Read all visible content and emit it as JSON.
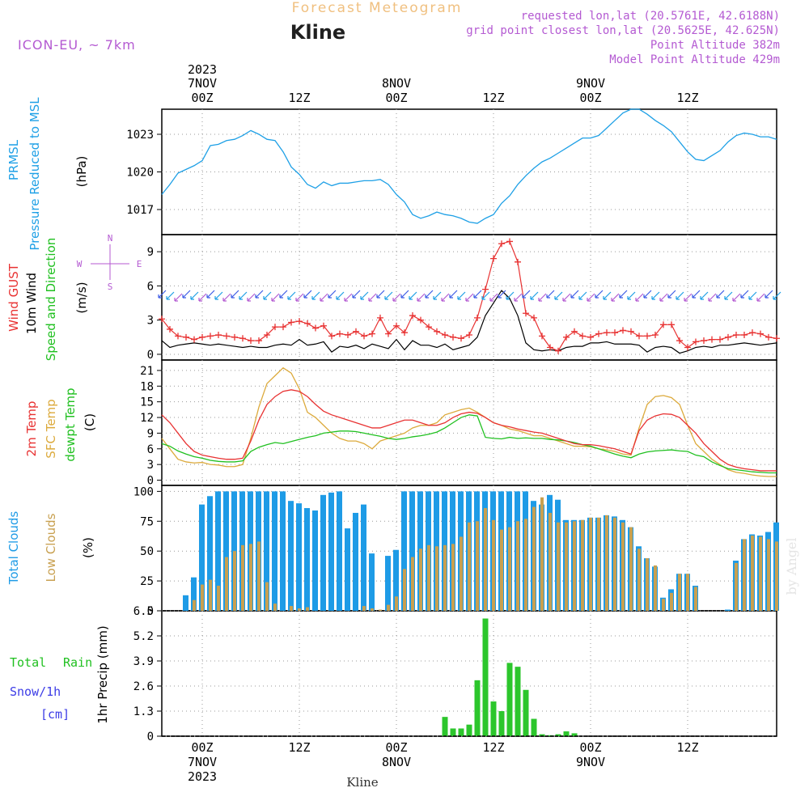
{
  "header": {
    "title": "Forecast Meteogram",
    "location": "Kline",
    "model": "ICON-EU, ~ 7km",
    "requested": "requested lon,lat (20.5761E, 42.6188N)",
    "grid_point": "grid point closest lon,lat (20.5625E, 42.625N)",
    "point_altitude": "Point Altitude 382m",
    "model_altitude": "Model Point Altitude 429m",
    "credit": "by Angel",
    "footer_location": "Kline"
  },
  "colors": {
    "pressure": "#1ea0e6",
    "gust": "#e83232",
    "wind": "#000000",
    "temp2m": "#e83232",
    "sfc": "#dcaa3c",
    "dewpt": "#20c020",
    "total_clouds": "#1e9be6",
    "low_clouds": "#c8a050",
    "rain": "#2cc62c",
    "snow": "#3c3ce6",
    "purple": "#b45ad2",
    "cyan": "#1ea0e6"
  },
  "time_axis": {
    "top": [
      {
        "line1": "2023",
        "line2": "7NOV",
        "line3": "00Z",
        "hour": 0
      },
      {
        "line1": "",
        "line2": "",
        "line3": "12Z",
        "hour": 12
      },
      {
        "line1": "",
        "line2": "8NOV",
        "line3": "00Z",
        "hour": 24
      },
      {
        "line1": "",
        "line2": "",
        "line3": "12Z",
        "hour": 36
      },
      {
        "line1": "",
        "line2": "9NOV",
        "line3": "00Z",
        "hour": 48
      },
      {
        "line1": "",
        "line2": "",
        "line3": "12Z",
        "hour": 60
      }
    ],
    "bottom": [
      {
        "line1": "00Z",
        "line2": "7NOV",
        "line3": "2023",
        "hour": 0
      },
      {
        "line1": "12Z",
        "line2": "",
        "line3": "",
        "hour": 12
      },
      {
        "line1": "00Z",
        "line2": "8NOV",
        "line3": "",
        "hour": 24
      },
      {
        "line1": "12Z",
        "line2": "",
        "line3": "",
        "hour": 36
      },
      {
        "line1": "00Z",
        "line2": "9NOV",
        "line3": "",
        "hour": 48
      },
      {
        "line1": "12Z",
        "line2": "",
        "line3": "",
        "hour": 60
      }
    ]
  },
  "chart_data": [
    {
      "type": "line",
      "id": "pressure",
      "labels": [
        "PRMSL",
        "Pressure Reduced to MSL",
        "(hPa)"
      ],
      "x_range": [
        -5,
        71
      ],
      "ylim": [
        1015,
        1025
      ],
      "yticks": [
        1017,
        1020,
        1023
      ],
      "x": [
        -5,
        -4,
        -3,
        -2,
        -1,
        0,
        1,
        2,
        3,
        4,
        5,
        6,
        7,
        8,
        9,
        10,
        11,
        12,
        13,
        14,
        15,
        16,
        17,
        18,
        19,
        20,
        21,
        22,
        23,
        24,
        25,
        26,
        27,
        28,
        29,
        30,
        31,
        32,
        33,
        34,
        35,
        36,
        37,
        38,
        39,
        40,
        41,
        42,
        43,
        44,
        45,
        46,
        47,
        48,
        49,
        50,
        51,
        52,
        53,
        54,
        55,
        56,
        57,
        58,
        59,
        60,
        61,
        62,
        63,
        64,
        65,
        66,
        67,
        68,
        69,
        70,
        71
      ],
      "values": [
        1018.2,
        1019.0,
        1019.9,
        1020.2,
        1020.5,
        1020.9,
        1022.1,
        1022.2,
        1022.5,
        1022.6,
        1022.9,
        1023.3,
        1023.0,
        1022.6,
        1022.5,
        1021.6,
        1020.4,
        1019.8,
        1019.0,
        1018.7,
        1019.2,
        1018.9,
        1019.1,
        1019.1,
        1019.2,
        1019.3,
        1019.3,
        1019.4,
        1019.0,
        1018.2,
        1017.6,
        1016.6,
        1016.3,
        1016.5,
        1016.8,
        1016.6,
        1016.5,
        1016.3,
        1016.0,
        1015.9,
        1016.3,
        1016.6,
        1017.5,
        1018.1,
        1019.0,
        1019.7,
        1020.3,
        1020.8,
        1021.1,
        1021.5,
        1021.9,
        1022.3,
        1022.7,
        1022.7,
        1022.9,
        1023.5,
        1024.1,
        1024.7,
        1025.0,
        1025.0,
        1024.6,
        1024.1,
        1023.7,
        1023.2,
        1022.4,
        1021.6,
        1021.0,
        1020.9,
        1021.3,
        1021.7,
        1022.4,
        1022.9,
        1023.1,
        1023.0,
        1022.8,
        1022.8,
        1022.6
      ]
    },
    {
      "type": "line",
      "id": "wind",
      "labels": [
        "Wind GUST",
        "10m Wind",
        "Speed and Direction",
        "(m/s)"
      ],
      "compass": {
        "n": "N",
        "e": "E",
        "s": "S",
        "w": "W"
      },
      "x_range": [
        -5,
        71
      ],
      "ylim": [
        -0.5,
        10.5
      ],
      "yticks": [
        0,
        3,
        6,
        9
      ],
      "x": [
        -5,
        -4,
        -3,
        -2,
        -1,
        0,
        1,
        2,
        3,
        4,
        5,
        6,
        7,
        8,
        9,
        10,
        11,
        12,
        13,
        14,
        15,
        16,
        17,
        18,
        19,
        20,
        21,
        22,
        23,
        24,
        25,
        26,
        27,
        28,
        29,
        30,
        31,
        32,
        33,
        34,
        35,
        36,
        37,
        38,
        39,
        40,
        41,
        42,
        43,
        44,
        45,
        46,
        47,
        48,
        49,
        50,
        51,
        52,
        53,
        54,
        55,
        56,
        57,
        58,
        59,
        60,
        61,
        62,
        63,
        64,
        65,
        66,
        67,
        68,
        69,
        70,
        71
      ],
      "gust": [
        3.1,
        2.2,
        1.6,
        1.5,
        1.3,
        1.5,
        1.6,
        1.7,
        1.6,
        1.5,
        1.4,
        1.2,
        1.2,
        1.7,
        2.4,
        2.4,
        2.8,
        2.9,
        2.7,
        2.3,
        2.5,
        1.6,
        1.8,
        1.7,
        2.0,
        1.6,
        1.8,
        3.2,
        1.8,
        2.5,
        1.9,
        3.4,
        3.0,
        2.4,
        2.0,
        1.7,
        1.5,
        1.4,
        1.7,
        3.2,
        5.7,
        8.4,
        9.7,
        9.9,
        8.1,
        3.6,
        3.2,
        1.6,
        0.6,
        0.3,
        1.5,
        2.0,
        1.6,
        1.5,
        1.8,
        1.9,
        1.9,
        2.1,
        2.0,
        1.6,
        1.6,
        1.7,
        2.6,
        2.6,
        1.2,
        0.6,
        1.1,
        1.2,
        1.3,
        1.3,
        1.5,
        1.7,
        1.7,
        1.9,
        1.8,
        1.5,
        1.4
      ],
      "speed": [
        1.2,
        0.6,
        0.8,
        0.9,
        1.0,
        0.9,
        0.8,
        0.9,
        0.8,
        0.7,
        0.6,
        0.7,
        0.6,
        0.6,
        0.8,
        0.9,
        0.8,
        1.3,
        0.8,
        0.9,
        1.1,
        0.2,
        0.7,
        0.6,
        0.8,
        0.5,
        0.9,
        0.7,
        0.5,
        1.3,
        0.4,
        1.2,
        0.8,
        0.8,
        0.6,
        0.9,
        0.4,
        0.6,
        0.8,
        1.5,
        3.4,
        4.5,
        5.6,
        4.9,
        3.4,
        1.0,
        0.4,
        0.3,
        0.4,
        0.3,
        0.6,
        0.7,
        0.7,
        1.0,
        1.0,
        1.1,
        0.9,
        0.9,
        0.9,
        0.8,
        0.2,
        0.6,
        0.7,
        0.6,
        0.1,
        0.3,
        0.6,
        0.7,
        0.6,
        0.8,
        0.8,
        0.9,
        1.0,
        0.9,
        0.8,
        0.9,
        1.0
      ]
    },
    {
      "type": "line",
      "id": "temperature",
      "labels": [
        "2m Temp",
        "SFC Temp",
        "dewpt Temp",
        "(C)"
      ],
      "x_range": [
        -5,
        71
      ],
      "ylim": [
        -1,
        23
      ],
      "yticks": [
        0,
        3,
        6,
        9,
        12,
        15,
        18,
        21
      ],
      "x": [
        -5,
        -4,
        -3,
        -2,
        -1,
        0,
        1,
        2,
        3,
        4,
        5,
        6,
        7,
        8,
        9,
        10,
        11,
        12,
        13,
        14,
        15,
        16,
        17,
        18,
        19,
        20,
        21,
        22,
        23,
        24,
        25,
        26,
        27,
        28,
        29,
        30,
        31,
        32,
        33,
        34,
        35,
        36,
        37,
        38,
        39,
        40,
        41,
        42,
        43,
        44,
        45,
        46,
        47,
        48,
        49,
        50,
        51,
        52,
        53,
        54,
        55,
        56,
        57,
        58,
        59,
        60,
        61,
        62,
        63,
        64,
        65,
        66,
        67,
        68,
        69,
        70,
        71
      ],
      "temp2m": [
        12.5,
        11.0,
        9.0,
        7.0,
        5.5,
        4.8,
        4.5,
        4.2,
        4.0,
        4.0,
        4.2,
        7.5,
        11.5,
        14.5,
        16.0,
        17.0,
        17.3,
        17.0,
        16.0,
        14.5,
        13.2,
        12.5,
        12.0,
        11.5,
        11.0,
        10.5,
        10.0,
        10.0,
        10.5,
        11.0,
        11.5,
        11.5,
        11.0,
        10.5,
        10.5,
        11.0,
        12.0,
        12.7,
        13.0,
        12.8,
        12.0,
        11.0,
        10.5,
        10.2,
        9.8,
        9.5,
        9.2,
        9.0,
        8.5,
        8.0,
        7.5,
        7.0,
        6.8,
        6.8,
        6.6,
        6.3,
        6.0,
        5.5,
        5.0,
        9.5,
        11.5,
        12.3,
        12.7,
        12.6,
        12.0,
        10.5,
        9.0,
        7.0,
        5.5,
        4.0,
        3.0,
        2.5,
        2.2,
        2.0,
        1.8,
        1.8,
        1.8
      ],
      "sfc": [
        8.0,
        6.0,
        4.0,
        3.5,
        3.3,
        3.4,
        3.0,
        2.9,
        2.6,
        2.6,
        3.0,
        8.0,
        14.0,
        18.5,
        20.0,
        21.5,
        20.5,
        17.5,
        13.0,
        12.0,
        10.5,
        9.0,
        8.0,
        7.5,
        7.5,
        7.0,
        6.0,
        7.5,
        8.0,
        8.5,
        9.0,
        10.0,
        10.5,
        10.5,
        11.0,
        12.5,
        13.0,
        13.5,
        13.8,
        13.0,
        12.0,
        11.0,
        10.5,
        9.8,
        9.5,
        9.0,
        8.5,
        8.5,
        8.0,
        7.5,
        7.0,
        6.5,
        6.5,
        6.4,
        6.0,
        5.8,
        5.5,
        5.0,
        4.8,
        10.0,
        14.5,
        16.0,
        16.2,
        15.8,
        14.5,
        10.5,
        7.0,
        5.5,
        4.0,
        3.0,
        2.0,
        1.5,
        1.3,
        1.0,
        0.8,
        0.7,
        0.7
      ],
      "dewpt": [
        7.0,
        6.5,
        5.6,
        5.0,
        4.5,
        4.2,
        3.8,
        3.6,
        3.5,
        3.5,
        3.7,
        5.5,
        6.3,
        6.8,
        7.2,
        7.0,
        7.4,
        7.8,
        8.2,
        8.5,
        9.0,
        9.2,
        9.4,
        9.4,
        9.3,
        9.0,
        8.7,
        8.4,
        8.0,
        7.8,
        8.0,
        8.3,
        8.5,
        8.8,
        9.2,
        10.0,
        11.0,
        12.0,
        12.5,
        12.3,
        8.2,
        8.0,
        7.9,
        8.2,
        8.0,
        8.1,
        8.0,
        8.0,
        7.8,
        7.7,
        7.5,
        7.2,
        6.8,
        6.5,
        6.0,
        5.5,
        5.0,
        4.6,
        4.3,
        5.0,
        5.4,
        5.6,
        5.7,
        5.8,
        5.6,
        5.5,
        4.8,
        4.5,
        3.5,
        2.8,
        2.2,
        2.0,
        1.8,
        1.6,
        1.5,
        1.4,
        1.4
      ]
    },
    {
      "type": "bar",
      "id": "clouds",
      "labels": [
        "Total Clouds",
        "Low Clouds",
        "(%)"
      ],
      "x_range": [
        -5,
        71
      ],
      "ylim": [
        0,
        105
      ],
      "yticks": [
        0,
        25,
        50,
        75,
        100
      ],
      "x": [
        -5,
        -4,
        -3,
        -2,
        -1,
        0,
        1,
        2,
        3,
        4,
        5,
        6,
        7,
        8,
        9,
        10,
        11,
        12,
        13,
        14,
        15,
        16,
        17,
        18,
        19,
        20,
        21,
        22,
        23,
        24,
        25,
        26,
        27,
        28,
        29,
        30,
        31,
        32,
        33,
        34,
        35,
        36,
        37,
        38,
        39,
        40,
        41,
        42,
        43,
        44,
        45,
        46,
        47,
        48,
        49,
        50,
        51,
        52,
        53,
        54,
        55,
        56,
        57,
        58,
        59,
        60,
        61,
        62,
        63,
        64,
        65,
        66,
        67,
        68,
        69,
        70,
        71
      ],
      "total": [
        0,
        0,
        0,
        13,
        28,
        89,
        96,
        100,
        100,
        100,
        100,
        100,
        100,
        100,
        100,
        100,
        92,
        90,
        86,
        84,
        97,
        99,
        100,
        69,
        82,
        89,
        48,
        0,
        46,
        51,
        100,
        100,
        100,
        100,
        100,
        100,
        100,
        100,
        100,
        100,
        100,
        100,
        100,
        100,
        100,
        100,
        92,
        89,
        97,
        93,
        76,
        76,
        76,
        78,
        78,
        80,
        79,
        76,
        70,
        54,
        44,
        37,
        11,
        18,
        31,
        31,
        21,
        0,
        0,
        0,
        1,
        42,
        60,
        64,
        63,
        66,
        74
      ],
      "low": [
        0,
        0,
        0,
        0,
        9,
        22,
        26,
        21,
        45,
        50,
        55,
        56,
        58,
        24,
        6,
        0,
        4,
        2,
        3,
        0,
        0,
        0,
        0,
        0,
        0,
        4,
        2,
        1,
        5,
        12,
        35,
        45,
        52,
        55,
        54,
        55,
        56,
        62,
        74,
        75,
        86,
        76,
        68,
        70,
        75,
        77,
        87,
        95,
        82,
        74,
        74,
        75,
        76,
        78,
        78,
        80,
        78,
        74,
        70,
        52,
        44,
        38,
        10,
        15,
        31,
        31,
        20,
        0,
        0,
        0,
        0,
        40,
        60,
        63,
        62,
        60,
        58
      ]
    },
    {
      "type": "bar",
      "id": "precip",
      "labels": [
        "Total",
        "Rain",
        "Snow/1h",
        "[cm]",
        "1hr Precip (mm)"
      ],
      "x_range": [
        -5,
        71
      ],
      "ylim": [
        0,
        6.5
      ],
      "yticks": [
        0,
        1.3,
        2.6,
        3.9,
        5.2,
        6.5
      ],
      "x": [
        -5,
        -4,
        -3,
        -2,
        -1,
        0,
        1,
        2,
        3,
        4,
        5,
        6,
        7,
        8,
        9,
        10,
        11,
        12,
        13,
        14,
        15,
        16,
        17,
        18,
        19,
        20,
        21,
        22,
        23,
        24,
        25,
        26,
        27,
        28,
        29,
        30,
        31,
        32,
        33,
        34,
        35,
        36,
        37,
        38,
        39,
        40,
        41,
        42,
        43,
        44,
        45,
        46,
        47,
        48,
        49,
        50,
        51,
        52,
        53,
        54,
        55,
        56,
        57,
        58,
        59,
        60,
        61,
        62,
        63,
        64,
        65,
        66,
        67,
        68,
        69,
        70,
        71
      ],
      "rain": [
        0,
        0,
        0,
        0,
        0,
        0,
        0,
        0,
        0,
        0,
        0,
        0,
        0,
        0,
        0,
        0,
        0,
        0,
        0,
        0,
        0,
        0,
        0,
        0,
        0,
        0,
        0,
        0,
        0,
        0,
        0,
        0,
        0,
        0,
        0,
        1.0,
        0.4,
        0.4,
        0.6,
        2.9,
        6.1,
        1.8,
        1.3,
        3.8,
        3.6,
        2.4,
        0.9,
        0.1,
        0.05,
        0.1,
        0.25,
        0.15,
        0,
        0,
        0,
        0,
        0,
        0,
        0,
        0,
        0,
        0,
        0,
        0,
        0,
        0,
        0,
        0,
        0,
        0,
        0,
        0,
        0,
        0,
        0,
        0,
        0
      ],
      "snow": [
        0,
        0,
        0,
        0,
        0,
        0,
        0,
        0,
        0,
        0,
        0,
        0,
        0,
        0,
        0,
        0,
        0,
        0,
        0,
        0,
        0,
        0,
        0,
        0,
        0,
        0,
        0,
        0,
        0,
        0,
        0,
        0,
        0,
        0,
        0,
        0,
        0,
        0,
        0,
        0,
        0,
        0,
        0,
        0,
        0,
        0,
        0,
        0,
        0,
        0,
        0,
        0,
        0,
        0,
        0,
        0,
        0,
        0,
        0,
        0,
        0,
        0,
        0,
        0,
        0,
        0,
        0,
        0,
        0,
        0,
        0,
        0,
        0,
        0,
        0,
        0,
        0
      ]
    }
  ]
}
